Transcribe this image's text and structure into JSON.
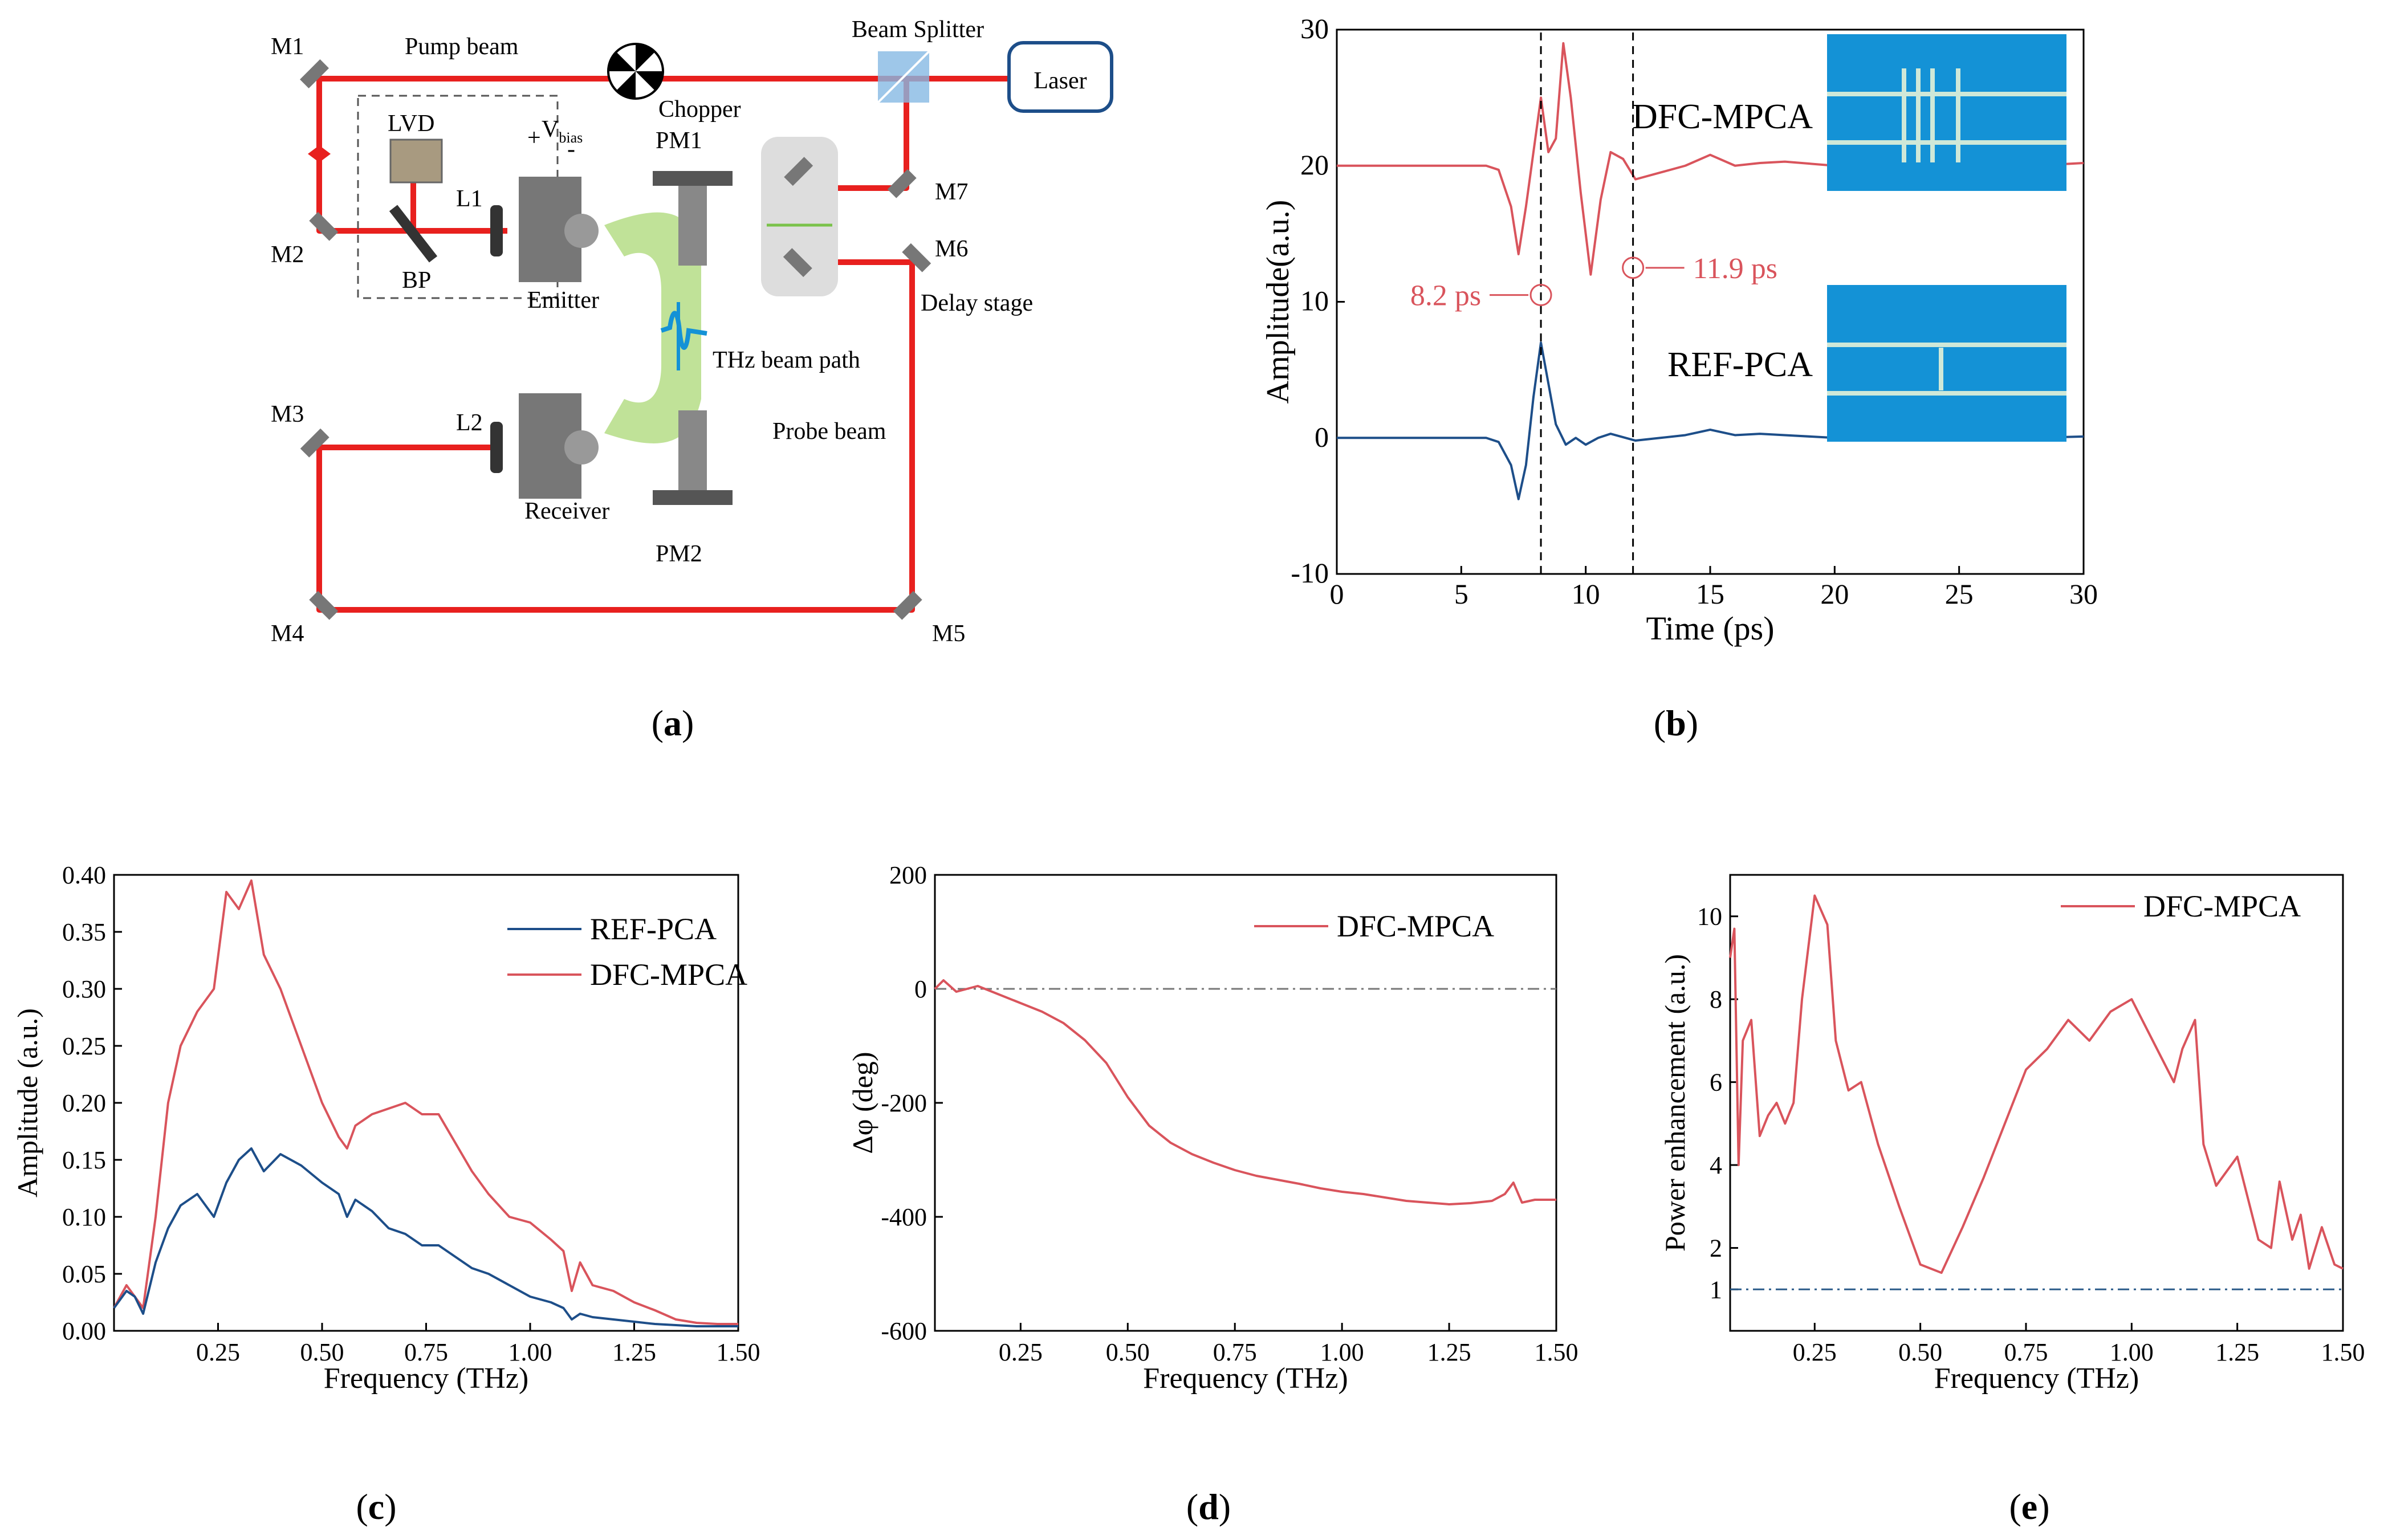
{
  "colors": {
    "red": "#d9545c",
    "blue": "#1d4e89",
    "beam": "#e8201e",
    "thz": "#b9df8d",
    "blueBox": "#1492d6"
  },
  "panel_a": {
    "caption": "a",
    "laser": "Laser",
    "beam_splitter": "Beam Splitter",
    "pump_beam": "Pump beam",
    "probe_beam": "Probe beam",
    "chopper": "Chopper",
    "pm1": "PM1",
    "pm2": "PM2",
    "lvd": "LVD",
    "bp": "BP",
    "l1": "L1",
    "l2": "L2",
    "vbias": "V",
    "vbias_sub": "bias",
    "plus": "+",
    "minus": "-",
    "emitter": "Emitter",
    "receiver": "Receiver",
    "thz_path": "THz beam path",
    "delay_stage": "Delay stage",
    "mirrors": [
      "M1",
      "M2",
      "M3",
      "M4",
      "M5",
      "M6",
      "M7"
    ]
  },
  "chart_data": [
    {
      "id": "b",
      "type": "line",
      "caption": "b",
      "xlabel": "Time (ps)",
      "ylabel": "Amplitude(a.u.)",
      "xlim": [
        0,
        30
      ],
      "ylim": [
        -10,
        30
      ],
      "xticks": [
        "0",
        "5",
        "10",
        "15",
        "20",
        "25",
        "30"
      ],
      "yticks": [
        "-10",
        "0",
        "10",
        "20",
        "30"
      ],
      "series": [
        {
          "name": "DFC-MPCA",
          "color": "#d9545c",
          "offset": 20,
          "x": [
            0,
            2,
            4,
            5,
            6,
            6.5,
            7,
            7.3,
            7.6,
            7.9,
            8.2,
            8.5,
            8.8,
            9.1,
            9.4,
            9.8,
            10.2,
            10.6,
            11,
            11.5,
            12,
            13,
            14,
            15,
            16,
            17,
            18,
            20,
            22,
            24,
            26,
            28,
            30
          ],
          "y": [
            20,
            20,
            20,
            20,
            20,
            19.7,
            17,
            13.5,
            17,
            21,
            25,
            21,
            22,
            29,
            25,
            18,
            12,
            17.5,
            21,
            20.5,
            19,
            19.5,
            20,
            20.8,
            20,
            20.2,
            20.3,
            20,
            20.3,
            20.1,
            20.3,
            20,
            20.2
          ]
        },
        {
          "name": "REF-PCA",
          "color": "#1d4e89",
          "x": [
            0,
            2,
            4,
            5,
            6,
            6.5,
            7,
            7.3,
            7.6,
            7.9,
            8.2,
            8.5,
            8.8,
            9.2,
            9.6,
            10,
            10.5,
            11,
            12,
            13,
            14,
            15,
            16,
            17,
            18,
            20,
            22,
            24,
            26,
            28,
            30
          ],
          "y": [
            0,
            0,
            0,
            0,
            0,
            -0.3,
            -2,
            -4.5,
            -2,
            3,
            7,
            4,
            1,
            -0.5,
            0,
            -0.5,
            0,
            0.3,
            -0.2,
            0,
            0.2,
            0.6,
            0.2,
            0.3,
            0.2,
            0,
            0.4,
            0.2,
            0.1,
            0,
            0.1
          ]
        }
      ],
      "markers": [
        {
          "t": 8.2,
          "label": "8.2 ps"
        },
        {
          "t": 11.9,
          "label": "11.9 ps"
        }
      ],
      "insets": [
        "DFC-MPCA",
        "REF-PCA"
      ]
    },
    {
      "id": "c",
      "type": "line",
      "caption": "c",
      "xlabel": "Frequency (THz)",
      "ylabel": "Amplitude (a.u.)",
      "xlim": [
        0,
        1.5
      ],
      "ylim": [
        0,
        0.4
      ],
      "xticks": [
        "0.25",
        "0.50",
        "0.75",
        "1.00",
        "1.25",
        "1.50"
      ],
      "yticks": [
        "0.00",
        "0.05",
        "0.10",
        "0.15",
        "0.20",
        "0.25",
        "0.30",
        "0.35",
        "0.40"
      ],
      "legend": [
        "REF-PCA",
        "DFC-MPCA"
      ],
      "series": [
        {
          "name": "DFC-MPCA",
          "color": "#d9545c",
          "x": [
            0,
            0.03,
            0.05,
            0.07,
            0.1,
            0.13,
            0.16,
            0.2,
            0.24,
            0.27,
            0.3,
            0.33,
            0.36,
            0.4,
            0.45,
            0.5,
            0.54,
            0.56,
            0.58,
            0.62,
            0.66,
            0.7,
            0.74,
            0.78,
            0.82,
            0.86,
            0.9,
            0.95,
            1.0,
            1.05,
            1.08,
            1.1,
            1.12,
            1.15,
            1.2,
            1.25,
            1.3,
            1.35,
            1.4,
            1.45,
            1.5
          ],
          "y": [
            0.02,
            0.04,
            0.03,
            0.02,
            0.1,
            0.2,
            0.25,
            0.28,
            0.3,
            0.385,
            0.37,
            0.395,
            0.33,
            0.3,
            0.25,
            0.2,
            0.17,
            0.16,
            0.18,
            0.19,
            0.195,
            0.2,
            0.19,
            0.19,
            0.165,
            0.14,
            0.12,
            0.1,
            0.095,
            0.08,
            0.07,
            0.035,
            0.06,
            0.04,
            0.035,
            0.025,
            0.018,
            0.01,
            0.007,
            0.006,
            0.006
          ]
        },
        {
          "name": "REF-PCA",
          "color": "#1d4e89",
          "x": [
            0,
            0.03,
            0.05,
            0.07,
            0.1,
            0.13,
            0.16,
            0.2,
            0.24,
            0.27,
            0.3,
            0.33,
            0.36,
            0.4,
            0.45,
            0.5,
            0.54,
            0.56,
            0.58,
            0.62,
            0.66,
            0.7,
            0.74,
            0.78,
            0.82,
            0.86,
            0.9,
            0.95,
            1.0,
            1.05,
            1.08,
            1.1,
            1.12,
            1.15,
            1.2,
            1.25,
            1.3,
            1.35,
            1.4,
            1.45,
            1.5
          ],
          "y": [
            0.02,
            0.035,
            0.03,
            0.015,
            0.06,
            0.09,
            0.11,
            0.12,
            0.1,
            0.13,
            0.15,
            0.16,
            0.14,
            0.155,
            0.145,
            0.13,
            0.12,
            0.1,
            0.115,
            0.105,
            0.09,
            0.085,
            0.075,
            0.075,
            0.065,
            0.055,
            0.05,
            0.04,
            0.03,
            0.025,
            0.02,
            0.01,
            0.015,
            0.012,
            0.01,
            0.008,
            0.006,
            0.005,
            0.004,
            0.004,
            0.004
          ]
        }
      ]
    },
    {
      "id": "d",
      "type": "line",
      "caption": "d",
      "xlabel": "Frequency (THz)",
      "ylabel": "Δφ  (deg)",
      "xlim": [
        0.05,
        1.5
      ],
      "ylim": [
        -600,
        200
      ],
      "xticks": [
        "0.25",
        "0.50",
        "0.75",
        "1.00",
        "1.25",
        "1.50"
      ],
      "yticks": [
        "-600",
        "-400",
        "-200",
        "0",
        "200"
      ],
      "legend": [
        "DFC-MPCA"
      ],
      "refline": 0,
      "series": [
        {
          "name": "DFC-MPCA",
          "color": "#d9545c",
          "x": [
            0.05,
            0.07,
            0.1,
            0.15,
            0.2,
            0.25,
            0.3,
            0.35,
            0.4,
            0.45,
            0.5,
            0.55,
            0.6,
            0.65,
            0.7,
            0.75,
            0.8,
            0.85,
            0.9,
            0.95,
            1.0,
            1.05,
            1.1,
            1.15,
            1.2,
            1.25,
            1.3,
            1.35,
            1.38,
            1.4,
            1.42,
            1.45,
            1.5
          ],
          "y": [
            0,
            15,
            -5,
            5,
            -10,
            -25,
            -40,
            -60,
            -90,
            -130,
            -190,
            -240,
            -270,
            -290,
            -305,
            -318,
            -328,
            -335,
            -342,
            -350,
            -356,
            -360,
            -366,
            -372,
            -375,
            -378,
            -376,
            -372,
            -360,
            -340,
            -375,
            -370,
            -370
          ]
        }
      ]
    },
    {
      "id": "e",
      "type": "line",
      "caption": "e",
      "xlabel": "Frequency (THz)",
      "ylabel": "Power enhancement (a.u.)",
      "xlim": [
        0.05,
        1.5
      ],
      "ylim": [
        0,
        11
      ],
      "xticks": [
        "0.25",
        "0.50",
        "0.75",
        "1.00",
        "1.25",
        "1.50"
      ],
      "yticks": [
        "1",
        "2",
        "4",
        "6",
        "8",
        "10"
      ],
      "legend": [
        "DFC-MPCA"
      ],
      "refline": 1,
      "series": [
        {
          "name": "DFC-MPCA",
          "color": "#d9545c",
          "x": [
            0.05,
            0.06,
            0.07,
            0.08,
            0.1,
            0.12,
            0.14,
            0.16,
            0.18,
            0.2,
            0.22,
            0.25,
            0.28,
            0.3,
            0.33,
            0.36,
            0.4,
            0.45,
            0.5,
            0.55,
            0.6,
            0.65,
            0.7,
            0.75,
            0.8,
            0.85,
            0.9,
            0.95,
            1.0,
            1.05,
            1.1,
            1.12,
            1.15,
            1.17,
            1.2,
            1.25,
            1.3,
            1.33,
            1.35,
            1.38,
            1.4,
            1.42,
            1.45,
            1.48,
            1.5
          ],
          "y": [
            9,
            9.7,
            4,
            7,
            7.5,
            4.7,
            5.2,
            5.5,
            5,
            5.5,
            8,
            10.5,
            9.8,
            7,
            5.8,
            6,
            4.5,
            3,
            1.6,
            1.4,
            2.5,
            3.7,
            5,
            6.3,
            6.8,
            7.5,
            7,
            7.7,
            8,
            7,
            6,
            6.8,
            7.5,
            4.5,
            3.5,
            4.2,
            2.2,
            2,
            3.6,
            2.2,
            2.8,
            1.5,
            2.5,
            1.6,
            1.5
          ]
        }
      ]
    }
  ]
}
